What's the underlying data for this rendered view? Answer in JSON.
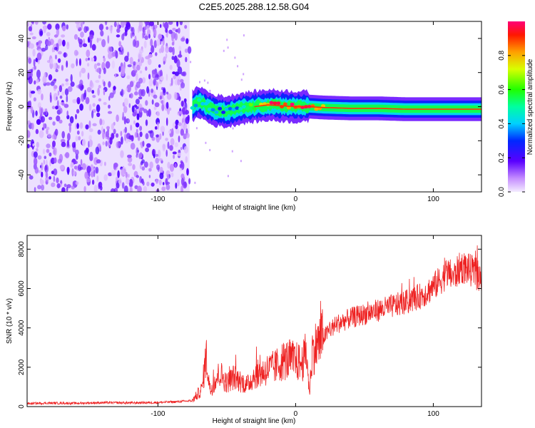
{
  "title": "C2E5.2025.288.12.58.G04",
  "colors": {
    "snr_line": "#ee2222",
    "axis": "#000000",
    "background": "#ffffff"
  },
  "chart_data": [
    {
      "id": "spectrogram",
      "type": "heatmap",
      "xlabel": "Height of straight line (km)",
      "ylabel": "Frequency (Hz)",
      "xlim": [
        -195,
        135
      ],
      "ylim": [
        -50,
        50
      ],
      "xticks": [
        -100,
        0,
        100
      ],
      "xtick_labels": [
        "-100",
        "0",
        "100"
      ],
      "yticks": [
        -40,
        -20,
        0,
        20,
        40
      ],
      "ytick_labels": [
        "-40",
        "-20",
        "0",
        "20",
        "40"
      ],
      "noise_region_x": [
        -195,
        -77
      ],
      "signal_trace": {
        "x": [
          -75,
          -70,
          -60,
          -50,
          -40,
          -30,
          -20,
          -10,
          0,
          10,
          20,
          40,
          60,
          80,
          100,
          120,
          135
        ],
        "freq": [
          0,
          3,
          -2,
          -3,
          -1,
          0,
          1,
          0.5,
          0,
          0,
          -0.5,
          -1,
          -1,
          -1.5,
          -1.5,
          -1.5,
          -1.5
        ],
        "amplitude": [
          0.3,
          0.35,
          0.3,
          0.3,
          0.35,
          0.55,
          0.8,
          0.85,
          0.9,
          0.85,
          0.8,
          0.85,
          0.85,
          0.9,
          0.95,
          0.95,
          0.95
        ]
      },
      "colorbar": {
        "label": "Normalized spectral amplitude",
        "range": [
          0,
          1
        ],
        "ticks": [
          0.0,
          0.2,
          0.4,
          0.6,
          0.8
        ],
        "tick_labels": [
          "0.0",
          "0.2",
          "0.4",
          "0.6",
          "0.8"
        ]
      }
    },
    {
      "id": "snr",
      "type": "line",
      "xlabel": "Height of straight line (km)",
      "ylabel": "SNR (10 * v/v)",
      "xlim": [
        -195,
        135
      ],
      "ylim": [
        0,
        8700
      ],
      "xticks": [
        -100,
        0,
        100
      ],
      "xtick_labels": [
        "-100",
        "0",
        "100"
      ],
      "yticks": [
        0,
        2000,
        4000,
        6000,
        8000
      ],
      "ytick_labels": [
        "0",
        "2000",
        "4000",
        "6000",
        "8000"
      ],
      "series": [
        {
          "name": "SNR",
          "x": [
            -195,
            -180,
            -160,
            -140,
            -120,
            -100,
            -85,
            -75,
            -68,
            -65,
            -62,
            -58,
            -55,
            -50,
            -45,
            -40,
            -35,
            -30,
            -25,
            -20,
            -15,
            -10,
            -5,
            0,
            5,
            8,
            10,
            12,
            15,
            20,
            25,
            30,
            40,
            50,
            60,
            70,
            80,
            90,
            95,
            100,
            105,
            110,
            115,
            120,
            125,
            130,
            135
          ],
          "y": [
            150,
            180,
            170,
            200,
            190,
            210,
            250,
            300,
            900,
            2600,
            800,
            1400,
            1700,
            1200,
            1500,
            1300,
            1100,
            1600,
            1700,
            1900,
            2000,
            2300,
            2400,
            2300,
            2200,
            2800,
            600,
            2800,
            3100,
            3500,
            3900,
            4200,
            4500,
            4700,
            4900,
            5100,
            5300,
            5600,
            5800,
            6100,
            6400,
            6800,
            6600,
            7100,
            7000,
            6800,
            6500
          ]
        }
      ]
    }
  ]
}
